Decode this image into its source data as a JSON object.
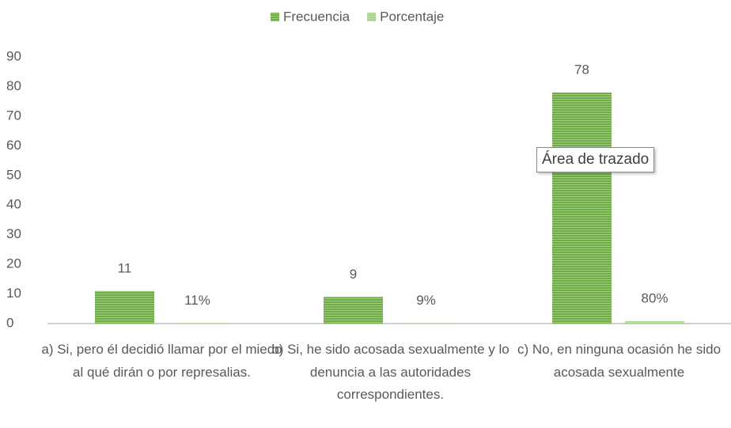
{
  "chart_data": {
    "type": "bar",
    "categories": [
      "a) Si, pero él decidió llamar por el miedo al qué dirán o por represalias.",
      "b) Si, he sido acosada sexualmente y lo denuncia a las autoridades correspondientes.",
      "c) No, en ninguna ocasión he sido acosada sexualmente"
    ],
    "series": [
      {
        "name": "Frecuencia",
        "color": "#70ad47",
        "values": [
          11,
          9,
          78
        ]
      },
      {
        "name": "Porcentaje",
        "color": "#a9d18e",
        "values": [
          0.11,
          0.09,
          0.8
        ],
        "value_labels": [
          "11%",
          "9%",
          "80%"
        ]
      }
    ],
    "ylim": [
      0,
      90
    ],
    "yticks": [
      0,
      10,
      20,
      30,
      40,
      50,
      60,
      70,
      80,
      90
    ],
    "grid": false,
    "legend": "top",
    "tooltip": "Área de trazado"
  }
}
